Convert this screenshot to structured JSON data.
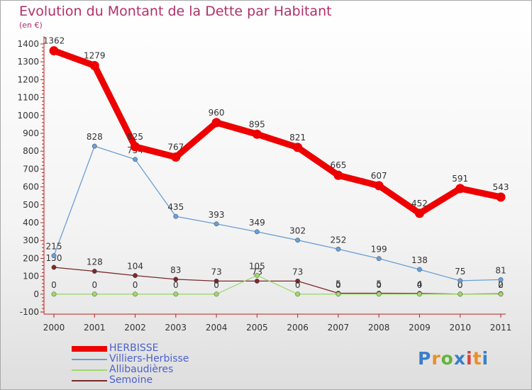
{
  "page": {
    "title": "Evolution du Montant de la Dette par Habitant",
    "unit": "(en €)",
    "logo": {
      "letters": [
        "P",
        "r",
        "o",
        "x",
        "i",
        "t",
        "i"
      ],
      "colors": [
        "#3a7ec9",
        "#e8902a",
        "#63b33c",
        "#3a7ec9",
        "#d9413a",
        "#e8902a",
        "#3a7ec9"
      ]
    }
  },
  "chart_data": {
    "type": "line",
    "title": "Evolution du Montant de la Dette par Habitant",
    "ylabel": "(en €)",
    "xlabel": "",
    "x": [
      "2000",
      "2001",
      "2002",
      "2003",
      "2004",
      "2005",
      "2006",
      "2007",
      "2008",
      "2009",
      "2010",
      "2011"
    ],
    "ylim": [
      -100,
      1400
    ],
    "yticks": [
      -100,
      0,
      100,
      200,
      300,
      400,
      500,
      600,
      700,
      800,
      900,
      1000,
      1100,
      1200,
      1300,
      1400
    ],
    "grid": false,
    "legend_position": "bottom-left",
    "series": [
      {
        "name": "HERBISSE",
        "color": "#ee0000",
        "weight": "heavy",
        "values": [
          1362,
          1279,
          825,
          767,
          960,
          895,
          821,
          665,
          607,
          452,
          591,
          543
        ],
        "labels": [
          "1362",
          "1279",
          "825",
          "767",
          "960",
          "895",
          "821",
          "665",
          "607",
          "452",
          "591",
          "543"
        ]
      },
      {
        "name": "Villiers-Herbisse",
        "color": "#6a9ed6",
        "weight": "thin",
        "values": [
          215,
          828,
          754,
          435,
          393,
          349,
          302,
          252,
          199,
          138,
          75,
          81
        ],
        "labels": [
          "215",
          "828",
          "754",
          "435",
          "393",
          "349",
          "302",
          "252",
          "199",
          "138",
          "75",
          "81"
        ]
      },
      {
        "name": "Allibaudières",
        "color": "#9fd86a",
        "weight": "thin",
        "values": [
          0,
          0,
          0,
          0,
          0,
          105,
          0,
          0,
          0,
          0,
          0,
          0
        ],
        "labels": [
          "0",
          "0",
          "0",
          "0",
          "0",
          "105",
          "0",
          "0",
          "0",
          "0",
          "0",
          "0"
        ]
      },
      {
        "name": "Semoine",
        "color": "#7a2a2a",
        "weight": "thin",
        "values": [
          150,
          128,
          104,
          83,
          73,
          73,
          73,
          5,
          5,
          4,
          0,
          2
        ],
        "labels": [
          "150",
          "128",
          "104",
          "83",
          "73",
          "73",
          "73",
          "5",
          "5",
          "4",
          "0",
          "2"
        ]
      }
    ]
  }
}
